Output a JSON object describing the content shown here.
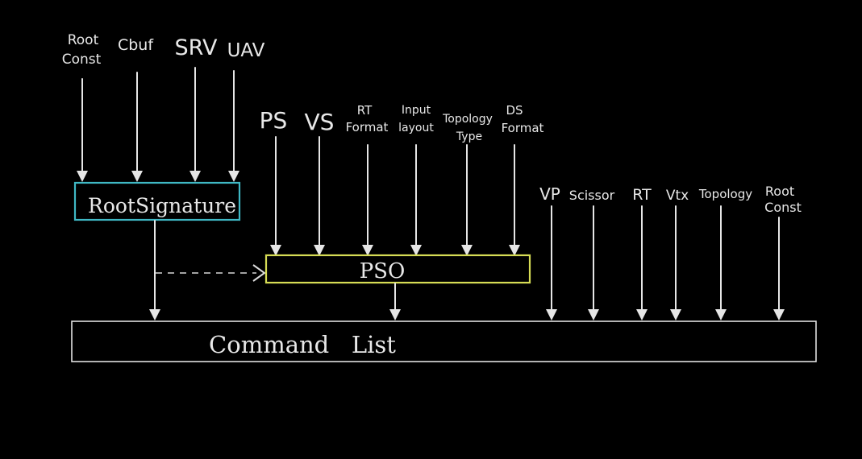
{
  "root_inputs": [
    {
      "line1": "Root",
      "line2": "Const"
    },
    {
      "line1": "Cbuf",
      "line2": ""
    },
    {
      "line1": "SRV",
      "line2": ""
    },
    {
      "line1": "UAV",
      "line2": ""
    }
  ],
  "root_signature": {
    "label": "RootSignature",
    "color": "#3fb8c4"
  },
  "pso_inputs": [
    {
      "line1": "PS",
      "line2": ""
    },
    {
      "line1": "VS",
      "line2": ""
    },
    {
      "line1": "RT",
      "line2": "Format"
    },
    {
      "line1": "Input",
      "line2": "layout"
    },
    {
      "line1": "Topology",
      "line2": "Type"
    },
    {
      "line1": "DS",
      "line2": "Format"
    }
  ],
  "pso": {
    "label": "PSO",
    "color": "#d6dc55"
  },
  "cmd_inputs": [
    {
      "line1": "VP",
      "line2": ""
    },
    {
      "line1": "Scissor",
      "line2": ""
    },
    {
      "line1": "RT",
      "line2": ""
    },
    {
      "line1": "Vtx",
      "line2": ""
    },
    {
      "line1": "Topology",
      "line2": ""
    },
    {
      "line1": "Root",
      "line2": "Const"
    }
  ],
  "command_list": {
    "label": "Command   List",
    "color": "#e0e0e0"
  }
}
